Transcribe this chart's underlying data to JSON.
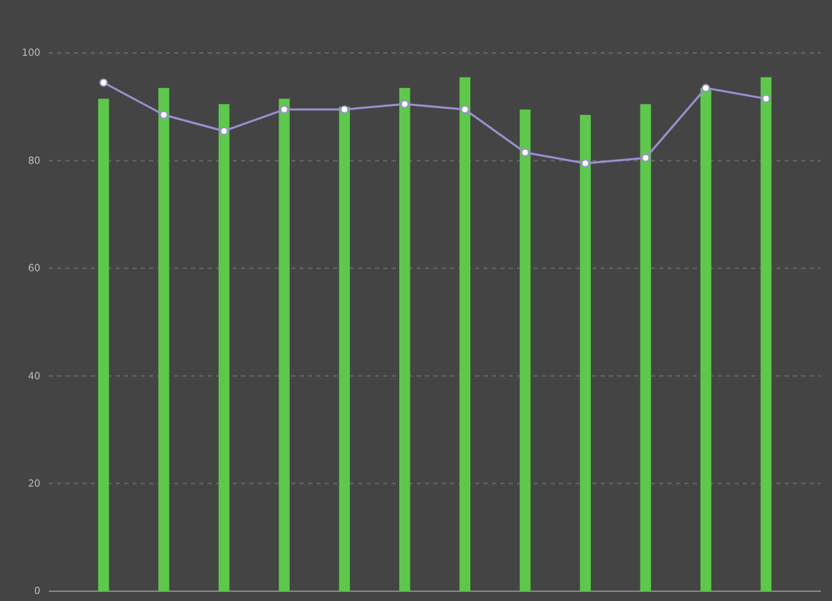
{
  "chart_data": {
    "type": "bar",
    "categories": [
      null,
      null,
      null,
      null,
      null,
      null,
      null,
      null,
      null,
      null,
      null,
      null
    ],
    "series": [
      {
        "color": "#5cc94a",
        "values": [
          91.5,
          93.5,
          90.5,
          91.5,
          90,
          93.5,
          95.5,
          89.5,
          88.5,
          90.5,
          93.5,
          95.5
        ]
      },
      {
        "type": "line",
        "color": "#9b8fd0",
        "marker": "circle",
        "values": [
          94.5,
          88.5,
          85.5,
          89.5,
          89.5,
          90.5,
          89.5,
          81.5,
          79.5,
          80.5,
          93.5,
          91.5
        ]
      }
    ],
    "ylim": [
      0,
      100
    ],
    "yticks": [
      0,
      20,
      40,
      60,
      80,
      100
    ],
    "grid": "y"
  }
}
